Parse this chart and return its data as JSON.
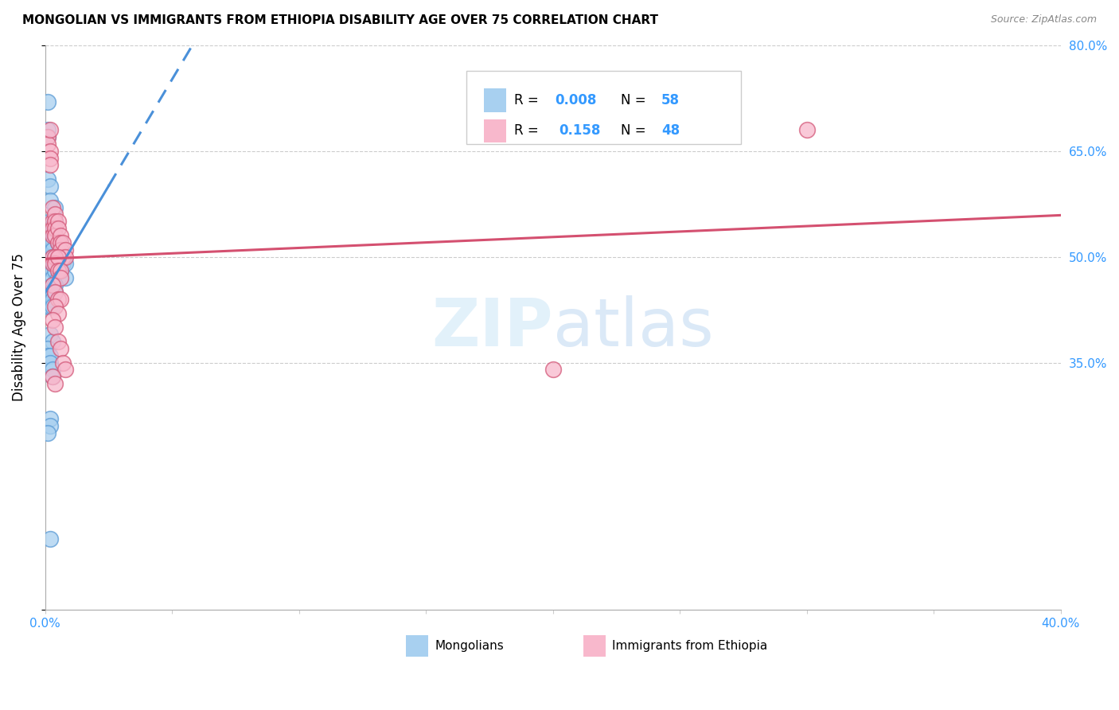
{
  "title": "MONGOLIAN VS IMMIGRANTS FROM ETHIOPIA DISABILITY AGE OVER 75 CORRELATION CHART",
  "source": "Source: ZipAtlas.com",
  "ylabel": "Disability Age Over 75",
  "watermark": "ZIPatlas",
  "xlim": [
    0.0,
    0.4
  ],
  "ylim": [
    0.0,
    0.8
  ],
  "color_blue": "#a8d0f0",
  "color_blue_edge": "#5b9bd5",
  "color_pink": "#f8b8cc",
  "color_pink_edge": "#d45a7a",
  "color_line_blue": "#4a90d9",
  "color_line_pink": "#d45070",
  "mongolian_x": [
    0.001,
    0.001,
    0.001,
    0.001,
    0.002,
    0.002,
    0.002,
    0.002,
    0.002,
    0.002,
    0.002,
    0.003,
    0.003,
    0.003,
    0.003,
    0.003,
    0.003,
    0.003,
    0.003,
    0.004,
    0.004,
    0.004,
    0.004,
    0.004,
    0.005,
    0.005,
    0.005,
    0.005,
    0.006,
    0.006,
    0.006,
    0.007,
    0.007,
    0.008,
    0.008,
    0.001,
    0.001,
    0.002,
    0.002,
    0.002,
    0.003,
    0.003,
    0.003,
    0.004,
    0.004,
    0.002,
    0.003,
    0.001,
    0.001,
    0.002,
    0.002,
    0.003,
    0.003,
    0.002,
    0.002,
    0.001,
    0.002
  ],
  "mongolian_y": [
    0.72,
    0.68,
    0.67,
    0.61,
    0.6,
    0.58,
    0.55,
    0.54,
    0.52,
    0.51,
    0.5,
    0.53,
    0.52,
    0.51,
    0.5,
    0.49,
    0.48,
    0.47,
    0.46,
    0.57,
    0.55,
    0.53,
    0.5,
    0.48,
    0.52,
    0.5,
    0.49,
    0.47,
    0.52,
    0.5,
    0.48,
    0.5,
    0.49,
    0.49,
    0.47,
    0.44,
    0.43,
    0.45,
    0.44,
    0.43,
    0.45,
    0.44,
    0.43,
    0.46,
    0.45,
    0.39,
    0.38,
    0.37,
    0.36,
    0.36,
    0.35,
    0.34,
    0.33,
    0.27,
    0.26,
    0.25,
    0.1
  ],
  "ethiopia_x": [
    0.001,
    0.001,
    0.002,
    0.002,
    0.002,
    0.002,
    0.003,
    0.003,
    0.003,
    0.003,
    0.004,
    0.004,
    0.004,
    0.004,
    0.005,
    0.005,
    0.005,
    0.006,
    0.006,
    0.006,
    0.007,
    0.007,
    0.008,
    0.008,
    0.003,
    0.003,
    0.004,
    0.004,
    0.005,
    0.005,
    0.006,
    0.006,
    0.003,
    0.004,
    0.005,
    0.006,
    0.004,
    0.005,
    0.003,
    0.004,
    0.005,
    0.006,
    0.007,
    0.008,
    0.003,
    0.004,
    0.2,
    0.3
  ],
  "ethiopia_y": [
    0.67,
    0.66,
    0.68,
    0.65,
    0.64,
    0.63,
    0.57,
    0.55,
    0.54,
    0.53,
    0.56,
    0.55,
    0.54,
    0.53,
    0.55,
    0.54,
    0.52,
    0.53,
    0.52,
    0.51,
    0.52,
    0.5,
    0.51,
    0.5,
    0.5,
    0.49,
    0.5,
    0.49,
    0.5,
    0.48,
    0.48,
    0.47,
    0.46,
    0.45,
    0.44,
    0.44,
    0.43,
    0.42,
    0.41,
    0.4,
    0.38,
    0.37,
    0.35,
    0.34,
    0.33,
    0.32,
    0.34,
    0.68
  ]
}
